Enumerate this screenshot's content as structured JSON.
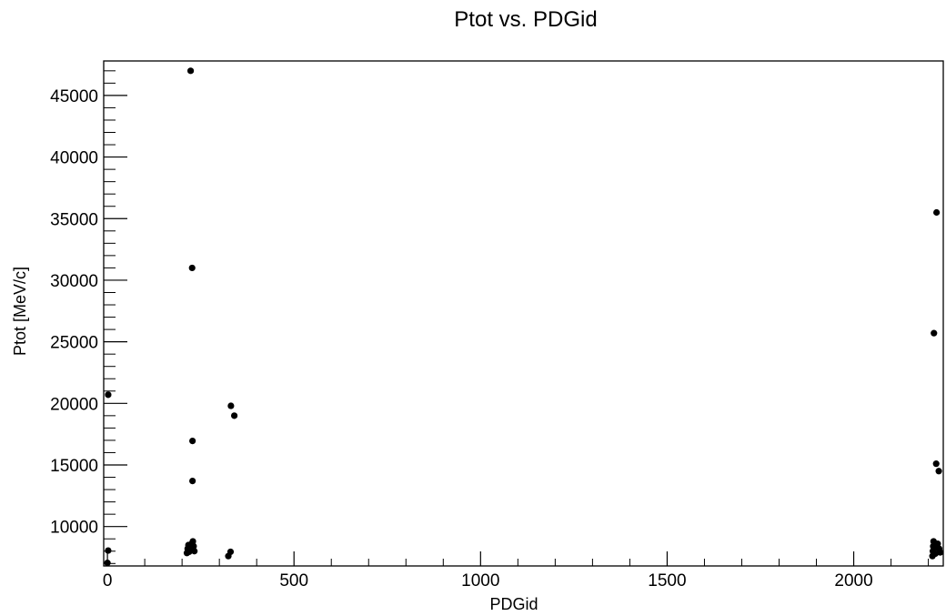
{
  "chart_data": {
    "type": "scatter",
    "title": "Ptot vs. PDGid",
    "xlabel": "PDGid",
    "ylabel": "Ptot [MeV/c]",
    "xlim": [
      -10,
      2240
    ],
    "ylim": [
      6800,
      47800
    ],
    "x_ticks": [
      0,
      500,
      1000,
      1500,
      2000
    ],
    "y_ticks": [
      10000,
      15000,
      20000,
      25000,
      30000,
      35000,
      40000,
      45000
    ],
    "x_tick_labels": [
      "0",
      "500",
      "1000",
      "1500",
      "2000"
    ],
    "y_tick_labels": [
      "10000",
      "15000",
      "20000",
      "25000",
      "30000",
      "35000",
      "40000",
      "45000"
    ],
    "grid": false,
    "legend": "none",
    "marker_color": "#000000",
    "points": [
      {
        "x": 0,
        "y": 7050
      },
      {
        "x": 2,
        "y": 8050
      },
      {
        "x": 2,
        "y": 20700
      },
      {
        "x": 213,
        "y": 7850
      },
      {
        "x": 215,
        "y": 8200
      },
      {
        "x": 217,
        "y": 8500
      },
      {
        "x": 219,
        "y": 7950
      },
      {
        "x": 221,
        "y": 8350
      },
      {
        "x": 223,
        "y": 47000
      },
      {
        "x": 225,
        "y": 8100
      },
      {
        "x": 227,
        "y": 8650
      },
      {
        "x": 227,
        "y": 31000
      },
      {
        "x": 228,
        "y": 13700
      },
      {
        "x": 228,
        "y": 16950
      },
      {
        "x": 229,
        "y": 8800
      },
      {
        "x": 231,
        "y": 8400
      },
      {
        "x": 233,
        "y": 8000
      },
      {
        "x": 324,
        "y": 7600
      },
      {
        "x": 330,
        "y": 7950
      },
      {
        "x": 331,
        "y": 19800
      },
      {
        "x": 340,
        "y": 19000
      },
      {
        "x": 2211,
        "y": 7600
      },
      {
        "x": 2212,
        "y": 8000
      },
      {
        "x": 2213,
        "y": 8400
      },
      {
        "x": 2214,
        "y": 8800
      },
      {
        "x": 2215,
        "y": 25700
      },
      {
        "x": 2219,
        "y": 7800
      },
      {
        "x": 2221,
        "y": 15100
      },
      {
        "x": 2222,
        "y": 35500
      },
      {
        "x": 2224,
        "y": 8300
      },
      {
        "x": 2225,
        "y": 8600
      },
      {
        "x": 2228,
        "y": 14500
      },
      {
        "x": 2229,
        "y": 8200
      },
      {
        "x": 2232,
        "y": 7900
      }
    ]
  }
}
